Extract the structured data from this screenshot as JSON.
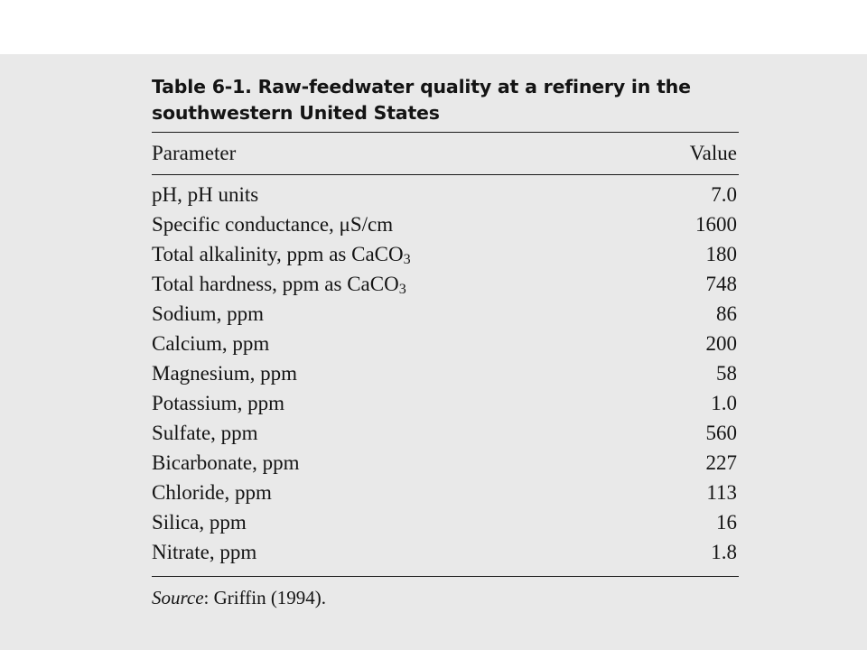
{
  "table": {
    "caption_line1": "Table 6-1. Raw-feedwater quality at a refinery in the",
    "caption_line2": "southwestern United States",
    "header": {
      "parameter": "Parameter",
      "value": "Value"
    },
    "rows": [
      {
        "parameter": "pH, pH units",
        "value": "7.0"
      },
      {
        "parameter": "Specific conductance, μS/cm",
        "value": "1600"
      },
      {
        "parameter_prefix": "Total alkalinity, ppm as CaCO",
        "parameter_sub": "3",
        "value": "180"
      },
      {
        "parameter_prefix": "Total hardness, ppm as CaCO",
        "parameter_sub": "3",
        "value": "748"
      },
      {
        "parameter": "Sodium, ppm",
        "value": "86"
      },
      {
        "parameter": "Calcium, ppm",
        "value": "200"
      },
      {
        "parameter": "Magnesium, ppm",
        "value": "58"
      },
      {
        "parameter": "Potassium, ppm",
        "value": "1.0"
      },
      {
        "parameter": "Sulfate, ppm",
        "value": "560"
      },
      {
        "parameter": "Bicarbonate, ppm",
        "value": "227"
      },
      {
        "parameter": "Chloride, ppm",
        "value": "113"
      },
      {
        "parameter": "Silica, ppm",
        "value": "16"
      },
      {
        "parameter": "Nitrate, ppm",
        "value": "1.8"
      }
    ],
    "source_label": "Source",
    "source_text": ": Griffin (1994)."
  }
}
